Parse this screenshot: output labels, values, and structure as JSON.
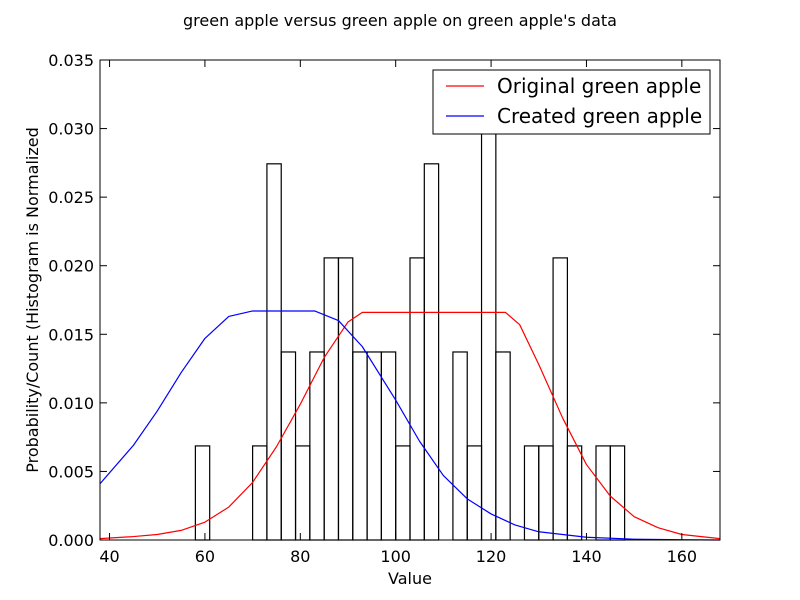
{
  "chart_data": {
    "type": "histogram-with-curves",
    "title": "green apple versus green apple on green apple's data",
    "xlabel": "Value",
    "ylabel": "Probability/Count (Histogram is Normalized",
    "xlim": [
      38,
      168
    ],
    "ylim": [
      0,
      0.035
    ],
    "xticks": [
      40,
      60,
      80,
      100,
      120,
      140,
      160
    ],
    "yticks": [
      0.0,
      0.005,
      0.01,
      0.015,
      0.02,
      0.025,
      0.03,
      0.035
    ],
    "ytick_labels": [
      "0.000",
      "0.005",
      "0.010",
      "0.015",
      "0.020",
      "0.025",
      "0.030",
      "0.035"
    ],
    "grid": false,
    "legend_position": "top-right",
    "histogram": {
      "bin_start": 58,
      "bin_width": 3,
      "heights": [
        0.00686,
        0,
        0,
        0,
        0.00686,
        0.02743,
        0.01371,
        0.00686,
        0.01371,
        0.02057,
        0.02057,
        0.01371,
        0.01371,
        0.01371,
        0.00686,
        0.02057,
        0.02743,
        0,
        0.01371,
        0.00686,
        0.03,
        0.01371,
        0,
        0.00686,
        0.00686,
        0.02057,
        0.00686,
        0,
        0.00686,
        0.00686
      ]
    },
    "series": [
      {
        "name": "Original green apple",
        "color": "#ff0000",
        "x": [
          38,
          45,
          50,
          55,
          60,
          65,
          70,
          75,
          80,
          85,
          90,
          93,
          100,
          110,
          120,
          123,
          126,
          130,
          135,
          140,
          145,
          150,
          155,
          160,
          168
        ],
        "y": [
          0.0001,
          0.00025,
          0.0004,
          0.0007,
          0.0013,
          0.0024,
          0.0042,
          0.0068,
          0.0099,
          0.0133,
          0.0159,
          0.0166,
          0.0166,
          0.0166,
          0.0166,
          0.0166,
          0.0157,
          0.0128,
          0.0089,
          0.0055,
          0.0032,
          0.0017,
          0.0009,
          0.0004,
          0.0001
        ]
      },
      {
        "name": "Created green apple",
        "color": "#0000ff",
        "x": [
          38,
          45,
          50,
          55,
          60,
          65,
          70,
          72,
          83,
          88,
          93,
          100,
          105,
          110,
          115,
          120,
          125,
          130,
          140,
          150,
          160,
          168
        ],
        "y": [
          0.0041,
          0.0069,
          0.0094,
          0.0122,
          0.0147,
          0.0163,
          0.0167,
          0.0167,
          0.0167,
          0.016,
          0.0141,
          0.0102,
          0.0072,
          0.0047,
          0.003,
          0.0019,
          0.0011,
          0.0006,
          0.0002,
          6e-05,
          2e-05,
          0.0
        ]
      }
    ]
  }
}
